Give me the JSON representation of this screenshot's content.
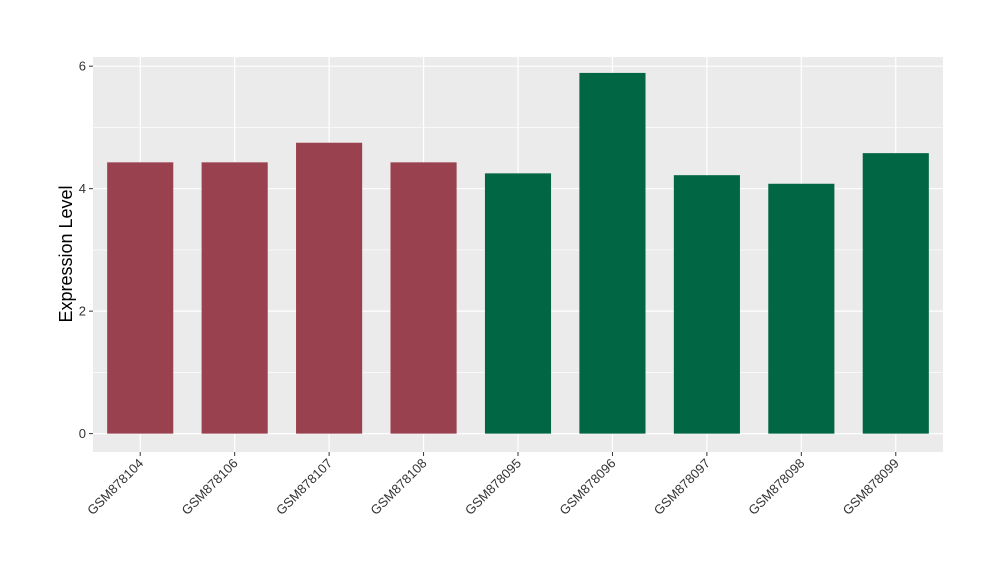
{
  "chart_data": {
    "type": "bar",
    "title": "",
    "xlabel": "",
    "ylabel": "Expression Level",
    "ylim": [
      -0.3,
      6.15
    ],
    "yticks": [
      0,
      2,
      4,
      6
    ],
    "grid": true,
    "categories": [
      "GSM878104",
      "GSM878106",
      "GSM878107",
      "GSM878108",
      "GSM878095",
      "GSM878096",
      "GSM878097",
      "GSM878098",
      "GSM878099"
    ],
    "values": [
      4.43,
      4.43,
      4.75,
      4.43,
      4.25,
      5.89,
      4.22,
      4.08,
      4.58
    ],
    "bar_colors": [
      "#99414F",
      "#99414F",
      "#99414F",
      "#99414F",
      "#006644",
      "#006644",
      "#006644",
      "#006644",
      "#006644"
    ],
    "panel_background": "#EBEBEB",
    "grid_color": "#FFFFFF"
  }
}
